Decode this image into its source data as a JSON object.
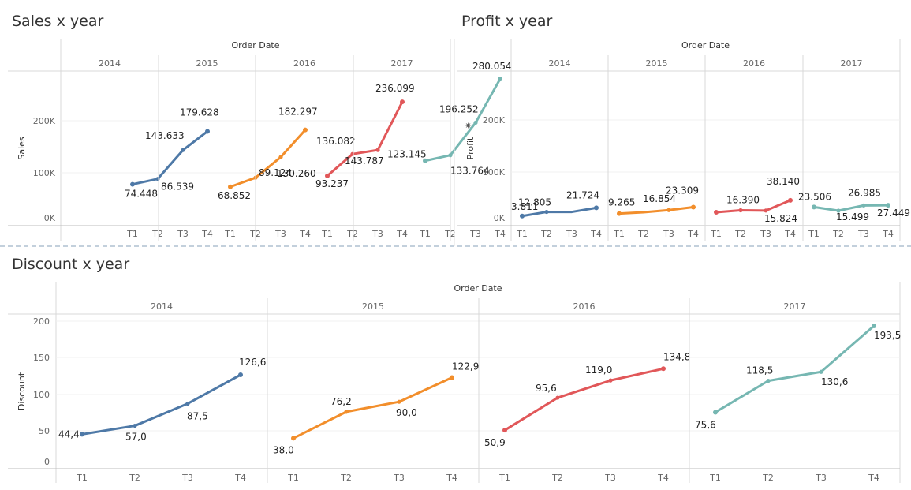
{
  "colors": {
    "2014": "#4e79a7",
    "2015": "#f28e2b",
    "2016": "#e15759",
    "2017": "#76b7b2"
  },
  "chart_data": [
    {
      "type": "line",
      "title": "Sales x year",
      "header": "Order Date",
      "ylabel": "Sales",
      "ylim": [
        0,
        280000
      ],
      "yticks": [
        "0K",
        "100K",
        "200K"
      ],
      "yticks_values": [
        0,
        100000,
        200000
      ],
      "panels": [
        "2014",
        "2015",
        "2016",
        "2017"
      ],
      "categories": [
        "T1",
        "T2",
        "T3",
        "T4"
      ],
      "series": [
        {
          "name": "2014",
          "values": [
            74448,
            86539,
            143633,
            179628
          ],
          "labels": [
            "74.448",
            "86.539",
            "143.633",
            "179.628"
          ]
        },
        {
          "name": "2015",
          "values": [
            68852,
            89124,
            130260,
            182297
          ],
          "labels": [
            "68.852",
            "89.124",
            "130.260",
            "182.297"
          ]
        },
        {
          "name": "2016",
          "values": [
            93237,
            136082,
            143787,
            236099
          ],
          "labels": [
            "93.237",
            "136.082",
            "143.787",
            "236.099"
          ]
        },
        {
          "name": "2017",
          "values": [
            123145,
            133764,
            196252,
            280054
          ],
          "labels": [
            "123.145",
            "133.764",
            "196.252",
            "280.054"
          ]
        }
      ]
    },
    {
      "type": "line",
      "title": "Profit x year",
      "header": "Order Date",
      "ylabel": "Profit",
      "ylim": [
        0,
        280000
      ],
      "yticks": [
        "0K",
        "100K",
        "200K"
      ],
      "yticks_values": [
        0,
        100000,
        200000
      ],
      "panels": [
        "2014",
        "2015",
        "2016",
        "2017"
      ],
      "categories": [
        "T1",
        "T2",
        "T3",
        "T4"
      ],
      "series": [
        {
          "name": "2014",
          "values": [
            3811,
            12805,
            12805,
            21724
          ],
          "labels": [
            "3.811",
            "12.805",
            "",
            "21.724"
          ]
        },
        {
          "name": "2015",
          "values": [
            9265,
            12000,
            16854,
            23309
          ],
          "labels": [
            "9.265",
            "",
            "16.854",
            "23.309"
          ]
        },
        {
          "name": "2016",
          "values": [
            12000,
            16390,
            15824,
            38140
          ],
          "labels": [
            "",
            "16.390",
            "15.824",
            "38.140"
          ]
        },
        {
          "name": "2017",
          "values": [
            23506,
            15499,
            26985,
            27449
          ],
          "labels": [
            "23.506",
            "15.499",
            "26.985",
            "27.449"
          ]
        }
      ]
    },
    {
      "type": "line",
      "title": "Discount x year",
      "header": "Order Date",
      "ylabel": "Discount",
      "ylim": [
        0,
        200
      ],
      "yticks": [
        "0",
        "50",
        "100",
        "150",
        "200"
      ],
      "yticks_values": [
        0,
        50,
        100,
        150,
        200
      ],
      "panels": [
        "2014",
        "2015",
        "2016",
        "2017"
      ],
      "categories": [
        "T1",
        "T2",
        "T3",
        "T4"
      ],
      "series": [
        {
          "name": "2014",
          "values": [
            44.4,
            57.0,
            87.5,
            126.6
          ],
          "labels": [
            "44,4",
            "57,0",
            "87,5",
            "126,6"
          ]
        },
        {
          "name": "2015",
          "values": [
            38.0,
            76.2,
            90.0,
            122.9
          ],
          "labels": [
            "38,0",
            "76,2",
            "90,0",
            "122,9"
          ]
        },
        {
          "name": "2016",
          "values": [
            50.9,
            95.6,
            119.0,
            134.8
          ],
          "labels": [
            "50,9",
            "95,6",
            "119,0",
            "134,8"
          ]
        },
        {
          "name": "2017",
          "values": [
            75.6,
            118.5,
            130.6,
            193.5
          ],
          "labels": [
            "75,6",
            "118,5",
            "130,6",
            "193,5"
          ]
        }
      ]
    }
  ]
}
